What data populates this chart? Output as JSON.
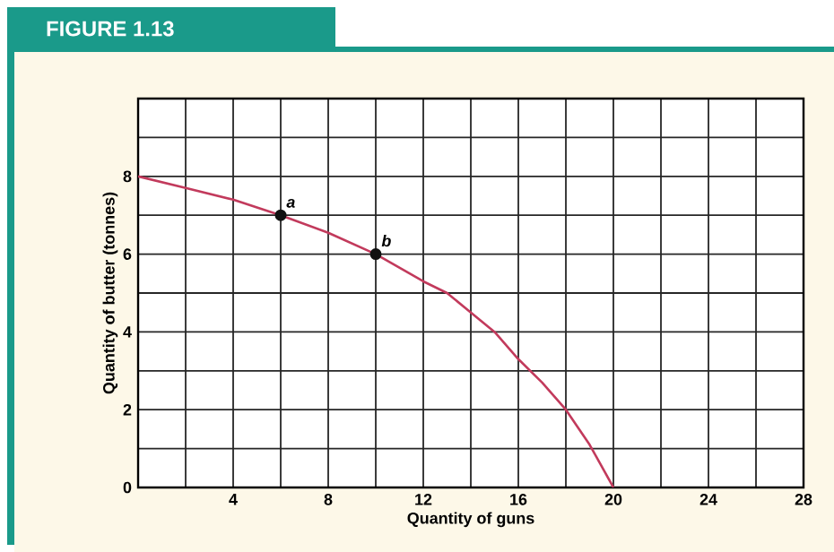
{
  "chart_data": {
    "type": "line",
    "title": "FIGURE 1.13",
    "xlabel": "Quantity of guns",
    "ylabel": "Quantity of butter (tonnes)",
    "series": [
      {
        "color": "#c23a5c",
        "marker": "none",
        "x": [
          0,
          2,
          4,
          6,
          8,
          10,
          12,
          13,
          14,
          15,
          16,
          17,
          18,
          19,
          20
        ],
        "values": [
          8,
          7.7,
          7.4,
          7,
          6.55,
          6,
          5.3,
          5,
          4.5,
          4,
          3.3,
          2.7,
          2,
          1.1,
          0
        ]
      },
      {
        "type": "scatter",
        "color": "#111111",
        "marker": "circle",
        "x": [
          6,
          10
        ],
        "values": [
          7,
          6
        ]
      }
    ],
    "annotations": [
      {
        "text": "a",
        "x": 6,
        "y": 7
      },
      {
        "text": "b",
        "x": 10,
        "y": 6
      }
    ],
    "xlim": [
      0,
      28
    ],
    "ylim": [
      0,
      10
    ],
    "xticks": [
      {
        "value": 0,
        "label": null
      },
      {
        "value": 2,
        "label": null
      },
      4,
      {
        "value": 6,
        "label": null
      },
      8,
      {
        "value": 10,
        "label": null
      },
      12,
      {
        "value": 14,
        "label": null
      },
      16,
      {
        "value": 18,
        "label": null
      },
      20,
      {
        "value": 22,
        "label": null
      },
      24,
      {
        "value": 26,
        "label": null
      },
      28
    ],
    "yticks": [
      0,
      {
        "value": 1,
        "label": null
      },
      2,
      {
        "value": 3,
        "label": null
      },
      4,
      {
        "value": 5,
        "label": null
      },
      6,
      {
        "value": 7,
        "label": null
      },
      8,
      {
        "value": 9,
        "label": null
      },
      {
        "value": 10,
        "label": null
      }
    ],
    "grid": true
  }
}
